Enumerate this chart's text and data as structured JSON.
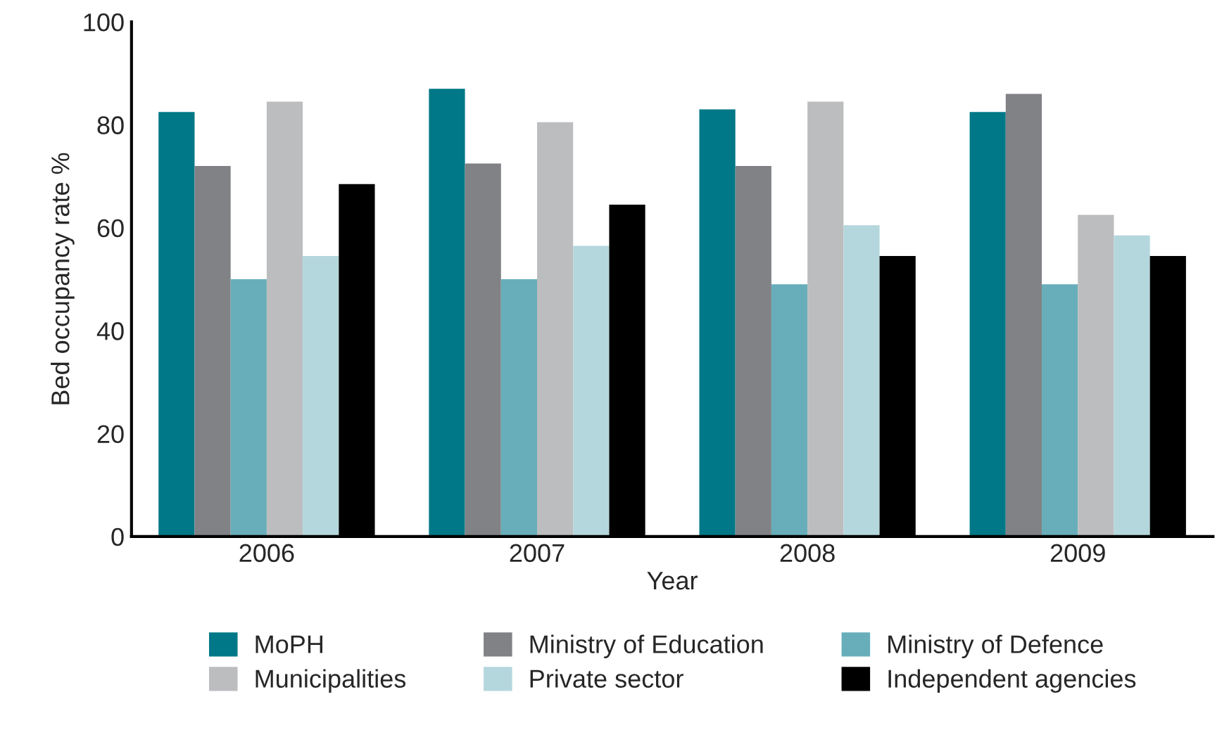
{
  "chart_data": {
    "type": "bar",
    "xlabel": "Year",
    "ylabel": "Bed occupancy rate %",
    "categories": [
      "2006",
      "2007",
      "2008",
      "2009"
    ],
    "series": [
      {
        "name": "MoPH",
        "color": "#007887",
        "values": [
          82.5,
          87,
          83,
          82.5
        ]
      },
      {
        "name": "Ministry of Education",
        "color": "#818286",
        "values": [
          72,
          72.5,
          72,
          86
        ]
      },
      {
        "name": "Ministry of Defence",
        "color": "#67aeba",
        "values": [
          50,
          50,
          49,
          49
        ]
      },
      {
        "name": "Municipalities",
        "color": "#bcbdbf",
        "values": [
          84.5,
          80.5,
          84.5,
          62.5
        ]
      },
      {
        "name": "Private sector",
        "color": "#b4d7dd",
        "values": [
          54.5,
          56.5,
          60.5,
          58.5
        ]
      },
      {
        "name": "Independent agencies",
        "color": "#000000",
        "values": [
          68.5,
          64.5,
          54.5,
          54.5
        ]
      }
    ],
    "ylim": [
      0,
      100
    ],
    "yticks": [
      0,
      20,
      40,
      60,
      80,
      100
    ],
    "grid": false,
    "legend": "bottom"
  }
}
